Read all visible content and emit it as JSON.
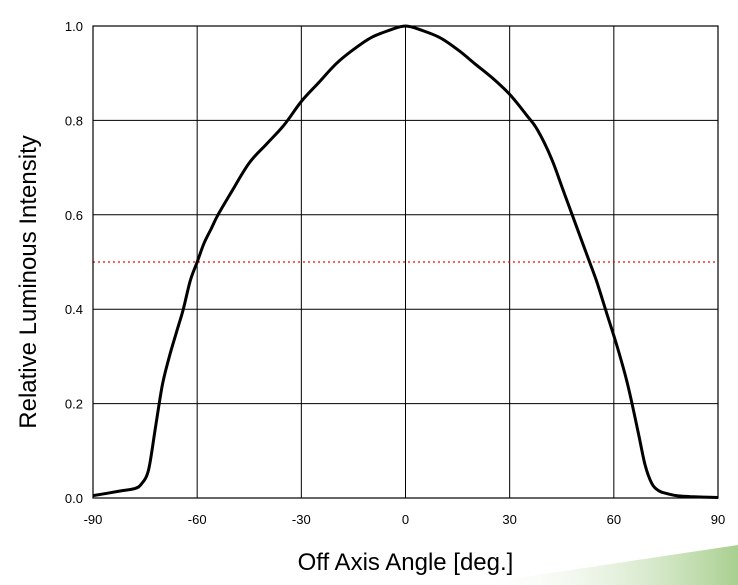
{
  "chart_data": {
    "type": "line",
    "xlabel": "Off Axis Angle [deg.]",
    "ylabel": "Relative Luminous Intensity",
    "xlim": [
      -90,
      90
    ],
    "ylim": [
      0,
      1.0
    ],
    "x_ticks": [
      -90,
      -60,
      -30,
      0,
      30,
      60,
      90
    ],
    "x_tick_labels": [
      "-90",
      "-60",
      "-30",
      "0",
      "30",
      "60",
      "90"
    ],
    "y_ticks": [
      0,
      0.2,
      0.4,
      0.6,
      0.8,
      1.0
    ],
    "y_tick_labels": [
      "0.0",
      "0.2",
      "0.4",
      "0.6",
      "0.8",
      "1.0"
    ],
    "grid": true,
    "colors": {
      "curve": "#000000",
      "reference": "#ff0000",
      "accent_band": "#a8cf8f"
    },
    "reference_line": {
      "y": 0.5,
      "style": "dotted"
    },
    "series": [
      {
        "x": [
          -90,
          -86,
          -82,
          -78,
          -76,
          -74,
          -72,
          -70,
          -68,
          -66,
          -64,
          -62,
          -60,
          -58,
          -56,
          -54,
          -50,
          -45,
          -40,
          -35,
          -30,
          -25,
          -20,
          -15,
          -10,
          -5,
          0,
          5,
          10,
          15,
          20,
          25,
          30,
          35,
          38,
          42,
          45,
          48,
          52,
          55,
          58,
          61,
          64,
          67,
          69,
          71,
          73,
          75,
          78,
          82,
          86,
          90
        ],
        "values": [
          0.005,
          0.01,
          0.015,
          0.02,
          0.03,
          0.06,
          0.15,
          0.24,
          0.3,
          0.35,
          0.4,
          0.46,
          0.5,
          0.54,
          0.57,
          0.6,
          0.65,
          0.71,
          0.75,
          0.79,
          0.84,
          0.88,
          0.92,
          0.95,
          0.975,
          0.99,
          1.0,
          0.99,
          0.975,
          0.95,
          0.92,
          0.89,
          0.855,
          0.81,
          0.78,
          0.72,
          0.66,
          0.6,
          0.52,
          0.46,
          0.39,
          0.32,
          0.24,
          0.14,
          0.07,
          0.03,
          0.015,
          0.01,
          0.005,
          0.003,
          0.002,
          0.001
        ]
      }
    ]
  }
}
